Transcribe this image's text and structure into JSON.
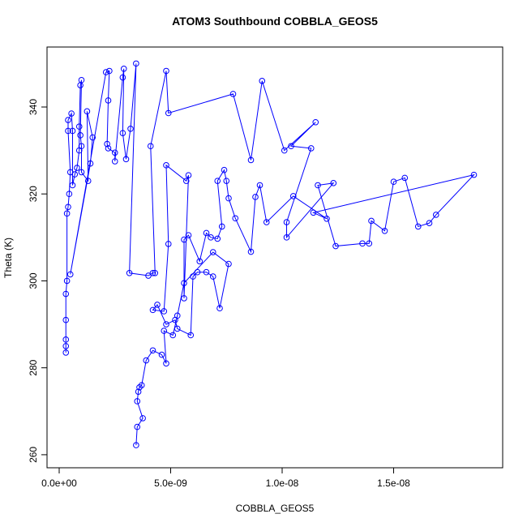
{
  "chart_data": {
    "type": "line-points",
    "title": "ATOM3 Southbound COBBLA_GEOS5",
    "x_label": "COBBLA_GEOS5",
    "y_label": "Theta (K)",
    "color": "#0000ff",
    "x": [
      3e-10,
      3e-10,
      3e-10,
      3e-10,
      3e-10,
      3.5e-10,
      3.5e-10,
      4e-10,
      4.5e-10,
      5e-10,
      4e-10,
      4e-10,
      5.5e-10,
      6e-10,
      6e-10,
      7e-10,
      8e-10,
      9e-10,
      9e-10,
      9.5e-10,
      1e-09,
      9.5e-10,
      1e-09,
      1e-09,
      1.3e-09,
      1.25e-09,
      1.5e-09,
      1.4e-09,
      5e-10,
      2.1e-09,
      2.25e-09,
      2.2e-09,
      2.15e-09,
      2.2e-09,
      2.5e-09,
      2.5e-09,
      2.85e-09,
      2.9e-09,
      2.85e-09,
      3e-09,
      3.2e-09,
      3.45e-09,
      3.15e-09,
      4e-09,
      4.2e-09,
      4.3e-09,
      4.1e-09,
      4.8e-09,
      4.9e-09,
      7.8e-09,
      8.6e-09,
      9.1e-09,
      1.01e-08,
      1.15e-08,
      1.04e-08,
      1.13e-08,
      1.02e-08,
      1.02e-08,
      1.23e-08,
      1.16e-08,
      1.24e-08,
      1.36e-08,
      1.39e-08,
      1.4e-08,
      1.46e-08,
      1.5e-08,
      1.55e-08,
      1.61e-08,
      1.66e-08,
      1.69e-08,
      1.86e-08,
      1.14e-08,
      1.2e-08,
      1.05e-08,
      9.3e-09,
      9e-09,
      8.8e-09,
      8.6e-09,
      7.9e-09,
      7.6e-09,
      7.5e-09,
      7.4e-09,
      7.1e-09,
      7.3e-09,
      7.1e-09,
      6.8e-09,
      6.6e-09,
      6.3e-09,
      5.8e-09,
      5.6e-09,
      5.6e-09,
      5.8e-09,
      5.7e-09,
      4.8e-09,
      4.9e-09,
      4.7e-09,
      4.2e-09,
      4.4e-09,
      4.8e-09,
      5.2e-09,
      5.3e-09,
      5.9e-09,
      6e-09,
      6.2e-09,
      6.6e-09,
      6.9e-09,
      7.2e-09,
      7.6e-09,
      6.9e-09,
      5.6e-09,
      5.3e-09,
      5.1e-09,
      4.7e-09,
      4.8e-09,
      4.6e-09,
      4.2e-09,
      3.9e-09,
      3.7e-09,
      3.6e-09,
      3.55e-09,
      3.5e-09,
      3.75e-09,
      3.5e-09,
      3.45e-09
    ],
    "values": [
      283.5,
      285,
      286.5,
      291,
      297,
      300,
      315.5,
      317,
      320,
      325,
      334.5,
      337,
      338.5,
      334.5,
      322,
      324.5,
      326,
      330,
      335.5,
      345,
      346.2,
      333.5,
      331,
      325,
      323,
      339,
      333,
      327,
      301.5,
      348,
      348.3,
      341.5,
      331.5,
      330.5,
      329.5,
      327.5,
      346.8,
      348.8,
      334,
      328,
      335,
      350,
      301.8,
      301.2,
      301.8,
      301.8,
      331,
      348.3,
      338.6,
      343,
      327.8,
      346,
      330,
      336.5,
      331,
      330.5,
      313.5,
      310,
      322.5,
      322,
      308,
      308.6,
      308.6,
      313.8,
      311.5,
      322.8,
      323.7,
      312.5,
      313.3,
      315.2,
      324.4,
      315.7,
      314.3,
      319.5,
      313.5,
      322,
      319.3,
      306.7,
      314.4,
      319,
      323,
      325.5,
      323,
      312.5,
      309.7,
      310,
      311,
      304.5,
      310.5,
      309.5,
      296,
      324.3,
      323,
      326.6,
      308.5,
      293,
      293.3,
      294.5,
      290,
      291,
      289,
      287.5,
      301,
      302,
      302,
      301,
      293.7,
      303.9,
      306.6,
      299.5,
      292,
      287.5,
      288.5,
      281,
      283,
      284,
      281.7,
      276,
      275.5,
      274.5,
      272.3,
      268.4,
      266.4,
      262.2
    ],
    "xlim": [
      -5.45e-10,
      1.989e-08
    ],
    "ylim": [
      257,
      353.8
    ],
    "xticks": [
      {
        "value": 0,
        "label": "0.0e+00"
      },
      {
        "value": 5e-09,
        "label": "5.0e-09"
      },
      {
        "value": 1e-08,
        "label": "1.0e-08"
      },
      {
        "value": 1.5e-08,
        "label": "1.5e-08"
      }
    ],
    "yticks": [
      260,
      280,
      300,
      320,
      340
    ]
  }
}
